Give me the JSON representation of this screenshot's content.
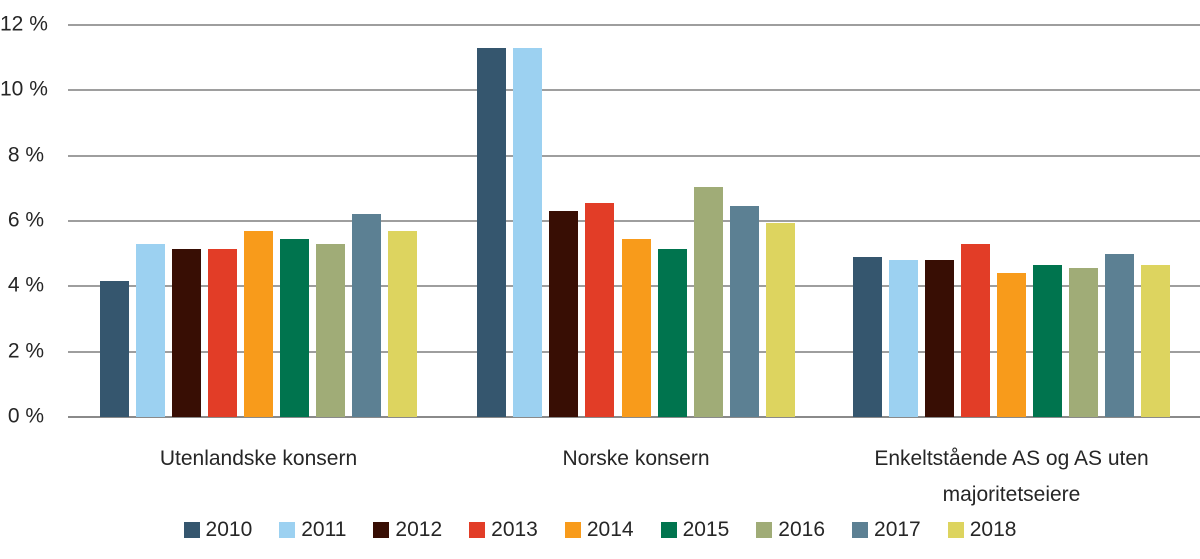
{
  "chart_data": {
    "type": "bar",
    "title": "",
    "xlabel": "",
    "ylabel": "",
    "ylim": [
      0,
      12
    ],
    "ytick_step": 2,
    "ytick_labels_top_to_bottom": [
      "12 %",
      "10 %",
      "8 %",
      "6 %",
      "4 %",
      "2 %",
      "0 %"
    ],
    "grid": true,
    "legend_position": "bottom",
    "categories": [
      "Utenlandske konsern",
      "Norske konsern",
      "Enkeltstående AS og AS uten majoritetseiere"
    ],
    "series": [
      {
        "name": "2010",
        "color": "#35566E",
        "values": [
          4.15,
          11.3,
          4.9
        ]
      },
      {
        "name": "2011",
        "color": "#9CD1F1",
        "values": [
          5.3,
          11.3,
          4.8
        ]
      },
      {
        "name": "2012",
        "color": "#380E04",
        "values": [
          5.15,
          6.3,
          4.8
        ]
      },
      {
        "name": "2013",
        "color": "#E23D27",
        "values": [
          5.15,
          6.55,
          5.3
        ]
      },
      {
        "name": "2014",
        "color": "#F89B1B",
        "values": [
          5.7,
          5.45,
          4.4
        ]
      },
      {
        "name": "2015",
        "color": "#00744E",
        "values": [
          5.45,
          5.15,
          4.65
        ]
      },
      {
        "name": "2016",
        "color": "#A0AC77",
        "values": [
          5.3,
          7.05,
          4.55
        ]
      },
      {
        "name": "2017",
        "color": "#5C8093",
        "values": [
          6.2,
          6.45,
          5.0
        ]
      },
      {
        "name": "2018",
        "color": "#DDD45F",
        "values": [
          5.7,
          5.95,
          4.65
        ]
      }
    ]
  },
  "colors": {
    "background": "#FFFFFF",
    "gridline": "#9E9E9E",
    "axis_line": "#8A8A8A",
    "text": "#262626"
  }
}
